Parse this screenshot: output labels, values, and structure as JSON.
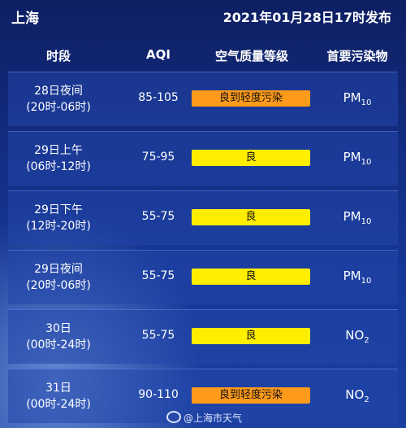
{
  "header": {
    "city": "上海",
    "published": "2021年01月28日17时发布"
  },
  "columns": {
    "period": "时段",
    "aqi": "AQI",
    "grade": "空气质量等级",
    "pollutant": "首要污染物"
  },
  "rows": [
    {
      "line1": "28日夜间",
      "line2": "(20时-06时)",
      "aqi": "85-105",
      "grade": "良到轻度污染",
      "color": "#ff9a1a",
      "pollutant": "PM",
      "sub": "10"
    },
    {
      "line1": "29日上午",
      "line2": "(06时-12时)",
      "aqi": "75-95",
      "grade": "良",
      "color": "#ffee00",
      "pollutant": "PM",
      "sub": "10"
    },
    {
      "line1": "29日下午",
      "line2": "(12时-20时)",
      "aqi": "55-75",
      "grade": "良",
      "color": "#ffee00",
      "pollutant": "PM",
      "sub": "10"
    },
    {
      "line1": "29日夜间",
      "line2": "(20时-06时)",
      "aqi": "55-75",
      "grade": "良",
      "color": "#ffee00",
      "pollutant": "PM",
      "sub": "10"
    },
    {
      "line1": "30日",
      "line2": "(00时-24时)",
      "aqi": "55-75",
      "grade": "良",
      "color": "#ffee00",
      "pollutant": "NO",
      "sub": "2"
    },
    {
      "line1": "31日",
      "line2": "(00时-24时)",
      "aqi": "90-110",
      "grade": "良到轻度污染",
      "color": "#ff9a1a",
      "pollutant": "NO",
      "sub": "2"
    }
  ],
  "watermark": "@上海市天气"
}
